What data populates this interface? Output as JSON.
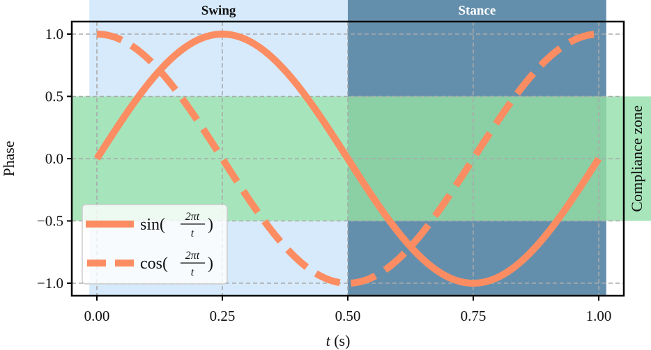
{
  "chart_data": {
    "type": "line",
    "title": "",
    "xlabel": "t (s)",
    "ylabel": "Phase",
    "xlim": [
      -0.05,
      1.05
    ],
    "ylim": [
      -1.1,
      1.1
    ],
    "x_ticks": [
      "0.00",
      "0.25",
      "0.50",
      "0.75",
      "1.00"
    ],
    "y_ticks": [
      "1.0",
      "0.5",
      "0.0",
      "−0.5",
      "−1.0"
    ],
    "grid": true,
    "legend_position": "lower left",
    "series": [
      {
        "name": "sin(2πt/t)",
        "style": "solid",
        "color": "#fc8d62",
        "x": [
          0,
          0.125,
          0.25,
          0.375,
          0.5,
          0.625,
          0.75,
          0.875,
          1.0
        ],
        "values": [
          0,
          0.707,
          1.0,
          0.707,
          0,
          -0.707,
          -1.0,
          -0.707,
          0
        ]
      },
      {
        "name": "cos(2πt/t)",
        "style": "dashed",
        "color": "#fc8d62",
        "x": [
          0,
          0.125,
          0.25,
          0.375,
          0.5,
          0.625,
          0.75,
          0.875,
          1.0
        ],
        "values": [
          1.0,
          0.707,
          0,
          -0.707,
          -1.0,
          -0.707,
          0,
          0.707,
          1.0
        ]
      }
    ],
    "annotations": [
      {
        "type": "vspan",
        "label": "Swing",
        "x_range": [
          -0.015,
          0.5
        ],
        "color": "#d6eafb"
      },
      {
        "type": "vspan",
        "label": "Stance",
        "x_range": [
          0.5,
          1.015
        ],
        "color": "#648fac"
      },
      {
        "type": "hspan",
        "label": "Compliance zone",
        "y_range": [
          -0.5,
          0.5
        ],
        "color": "#a3e4b7"
      }
    ]
  },
  "labels": {
    "swing": "Swing",
    "stance": "Stance",
    "compliance": "Compliance zone",
    "xlabel_var": "t",
    "xlabel_unit": " (s)",
    "ylabel": "Phase",
    "legend_sin_fn": "sin",
    "legend_cos_fn": "cos",
    "legend_num": "2πt",
    "legend_den": "t"
  }
}
